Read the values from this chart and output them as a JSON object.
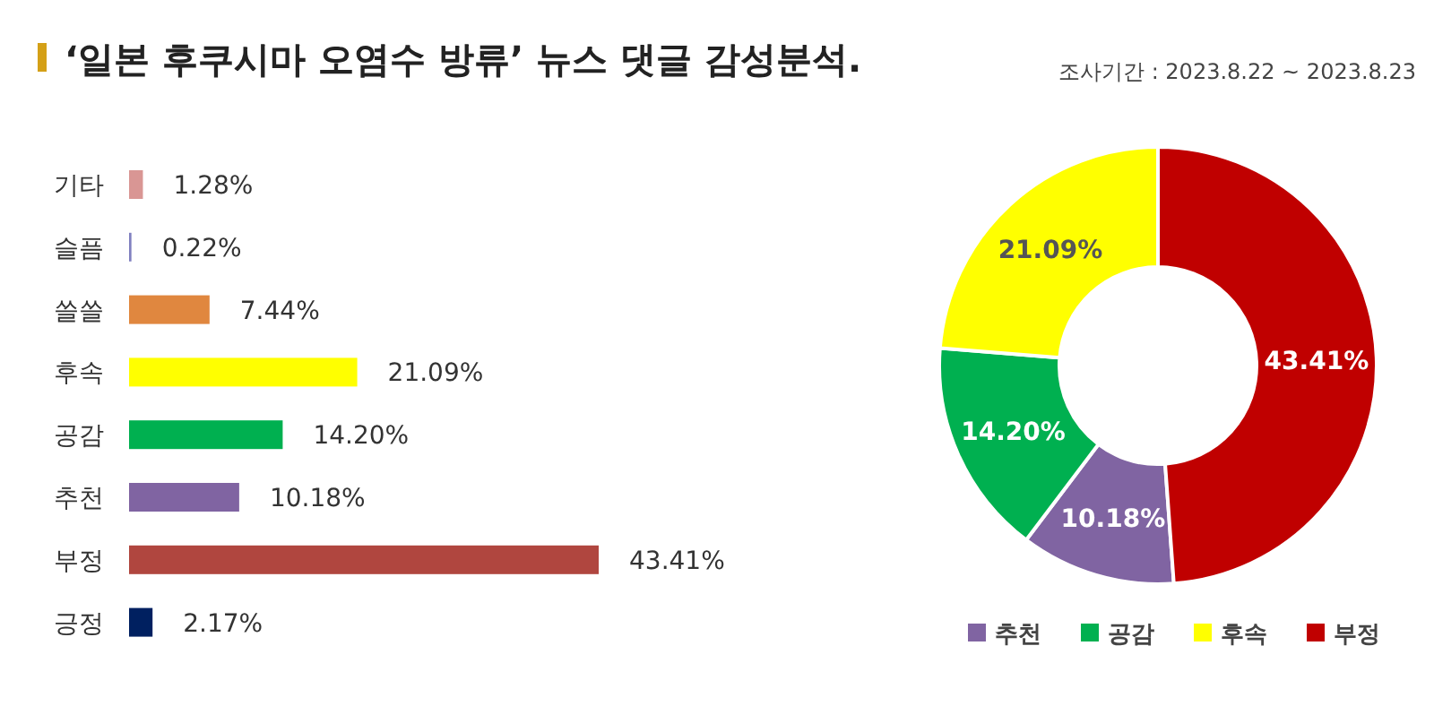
{
  "chart_data": [
    {
      "type": "bar",
      "orientation": "horizontal",
      "title": "‘일본 후쿠시마 오염수 방류’ 뉴스 댓글 감성분석.",
      "categories": [
        "기타",
        "슬픔",
        "쓸쓸",
        "후속",
        "공감",
        "추천",
        "부정",
        "긍정"
      ],
      "values": [
        1.28,
        0.22,
        7.44,
        21.09,
        14.2,
        10.18,
        43.41,
        2.17
      ],
      "colors": [
        "#d99694",
        "#8080c0",
        "#e0873f",
        "#ffff00",
        "#00b050",
        "#8064a2",
        "#b0463f",
        "#002060"
      ],
      "value_labels": [
        "1.28%",
        "0.22%",
        "7.44%",
        "21.09%",
        "14.20%",
        "10.18%",
        "43.41%",
        "2.17%"
      ]
    },
    {
      "type": "donut",
      "subtitle": "조사기간 : 2023.8.22 ~ 2023.8.23",
      "categories": [
        "추천",
        "공감",
        "후속",
        "부정"
      ],
      "values": [
        10.18,
        14.2,
        21.09,
        43.41
      ],
      "colors": [
        "#8064a2",
        "#00b050",
        "#ffff00",
        "#c00000"
      ],
      "value_labels": [
        "10.18%",
        "14.20%",
        "21.09%",
        "43.41%"
      ],
      "legend": "bottom"
    }
  ]
}
